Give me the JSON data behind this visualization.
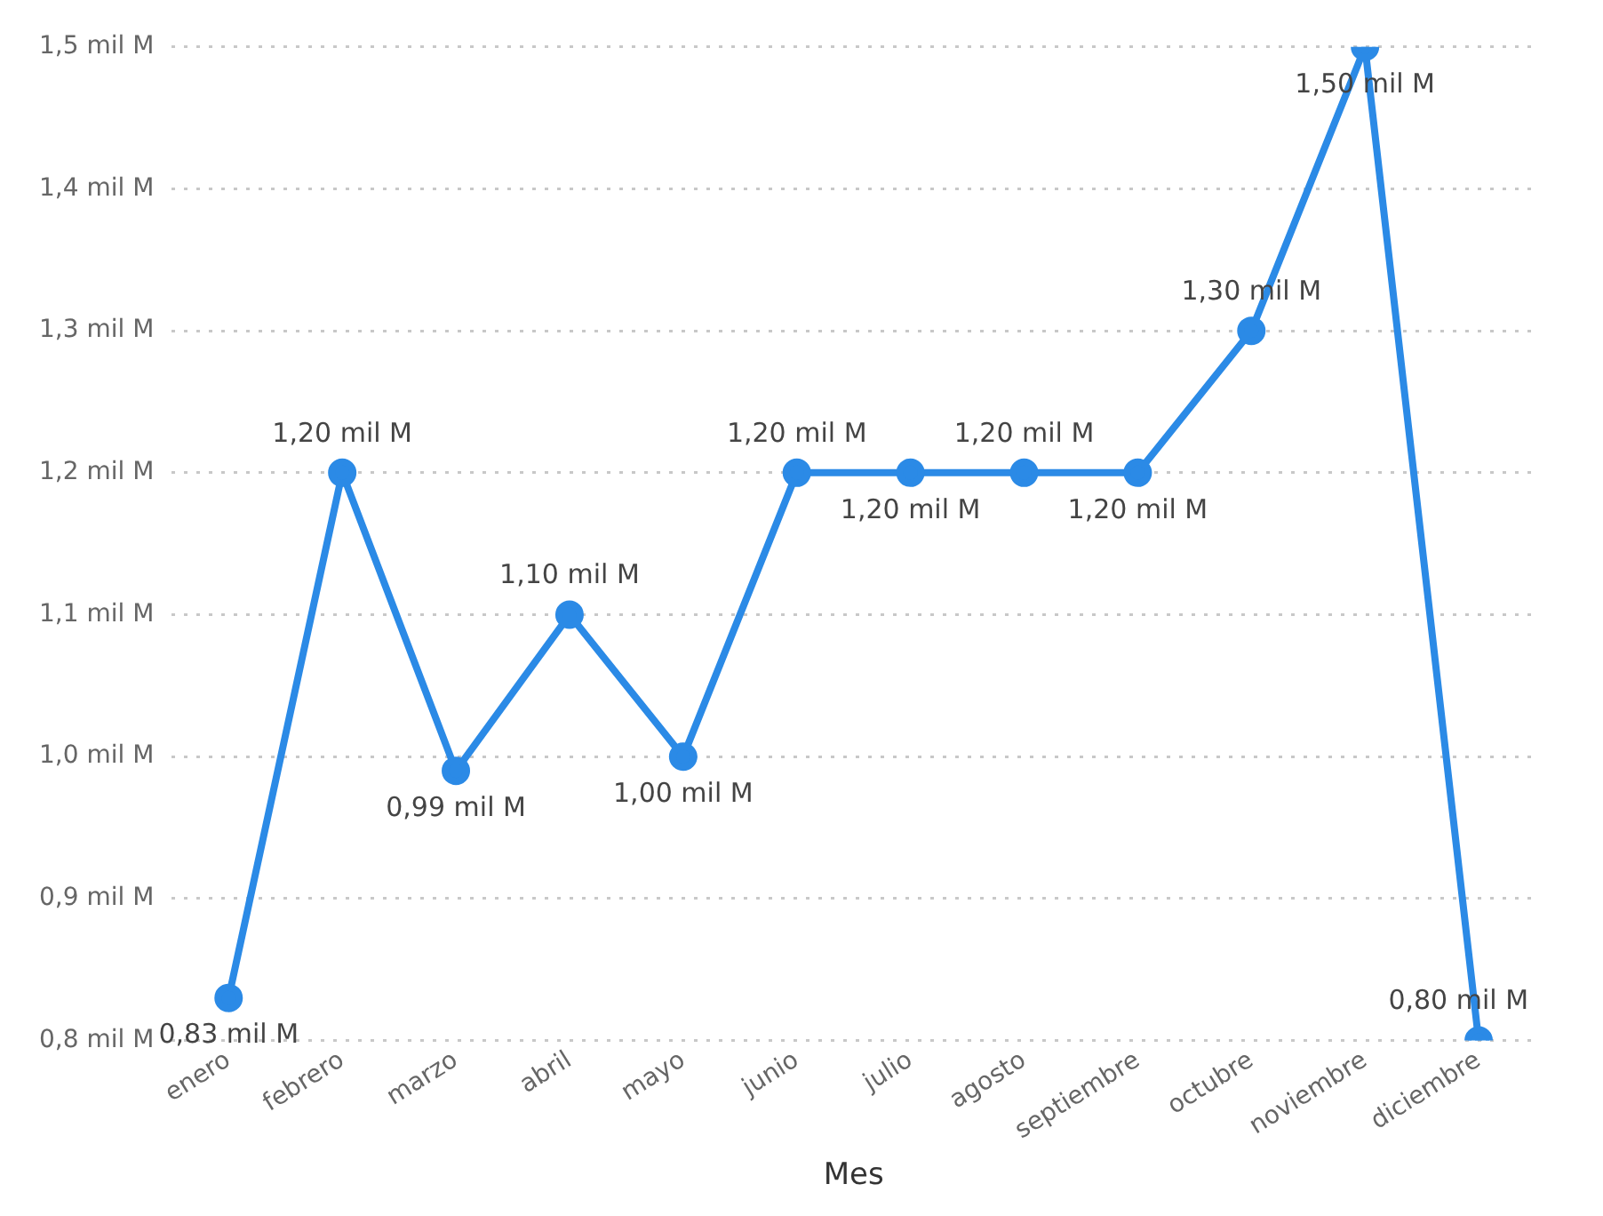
{
  "chart_data": {
    "type": "line",
    "xlabel": "Mes",
    "categories": [
      "enero",
      "febrero",
      "marzo",
      "abril",
      "mayo",
      "junio",
      "julio",
      "agosto",
      "septiembre",
      "octubre",
      "noviembre",
      "diciembre"
    ],
    "series": [
      {
        "color": "#2b8ae6",
        "values": [
          0.83,
          1.2,
          0.99,
          1.1,
          1.0,
          1.2,
          1.2,
          1.2,
          1.2,
          1.3,
          1.5,
          0.8
        ],
        "value_labels": [
          "0,83 mil M",
          "1,20 mil M",
          "0,99 mil M",
          "1,10 mil M",
          "1,00 mil M",
          "1,20 mil M",
          "1,20 mil M",
          "1,20 mil M",
          "1,20 mil M",
          "1,30 mil M",
          "1,50 mil M",
          "0,80 mil M"
        ]
      }
    ],
    "ylim": [
      0.8,
      1.5
    ],
    "yticks": [
      {
        "value": 0.8,
        "label": "0,8 mil M"
      },
      {
        "value": 0.9,
        "label": "0,9 mil M"
      },
      {
        "value": 1.0,
        "label": "1,0 mil M"
      },
      {
        "value": 1.1,
        "label": "1,1 mil M"
      },
      {
        "value": 1.2,
        "label": "1,2 mil M"
      },
      {
        "value": 1.3,
        "label": "1,3 mil M"
      },
      {
        "value": 1.4,
        "label": "1,4 mil M"
      },
      {
        "value": 1.5,
        "label": "1,5 mil M"
      }
    ],
    "grid": "y",
    "marker": "circle",
    "line_style": "solid",
    "legend": false
  }
}
